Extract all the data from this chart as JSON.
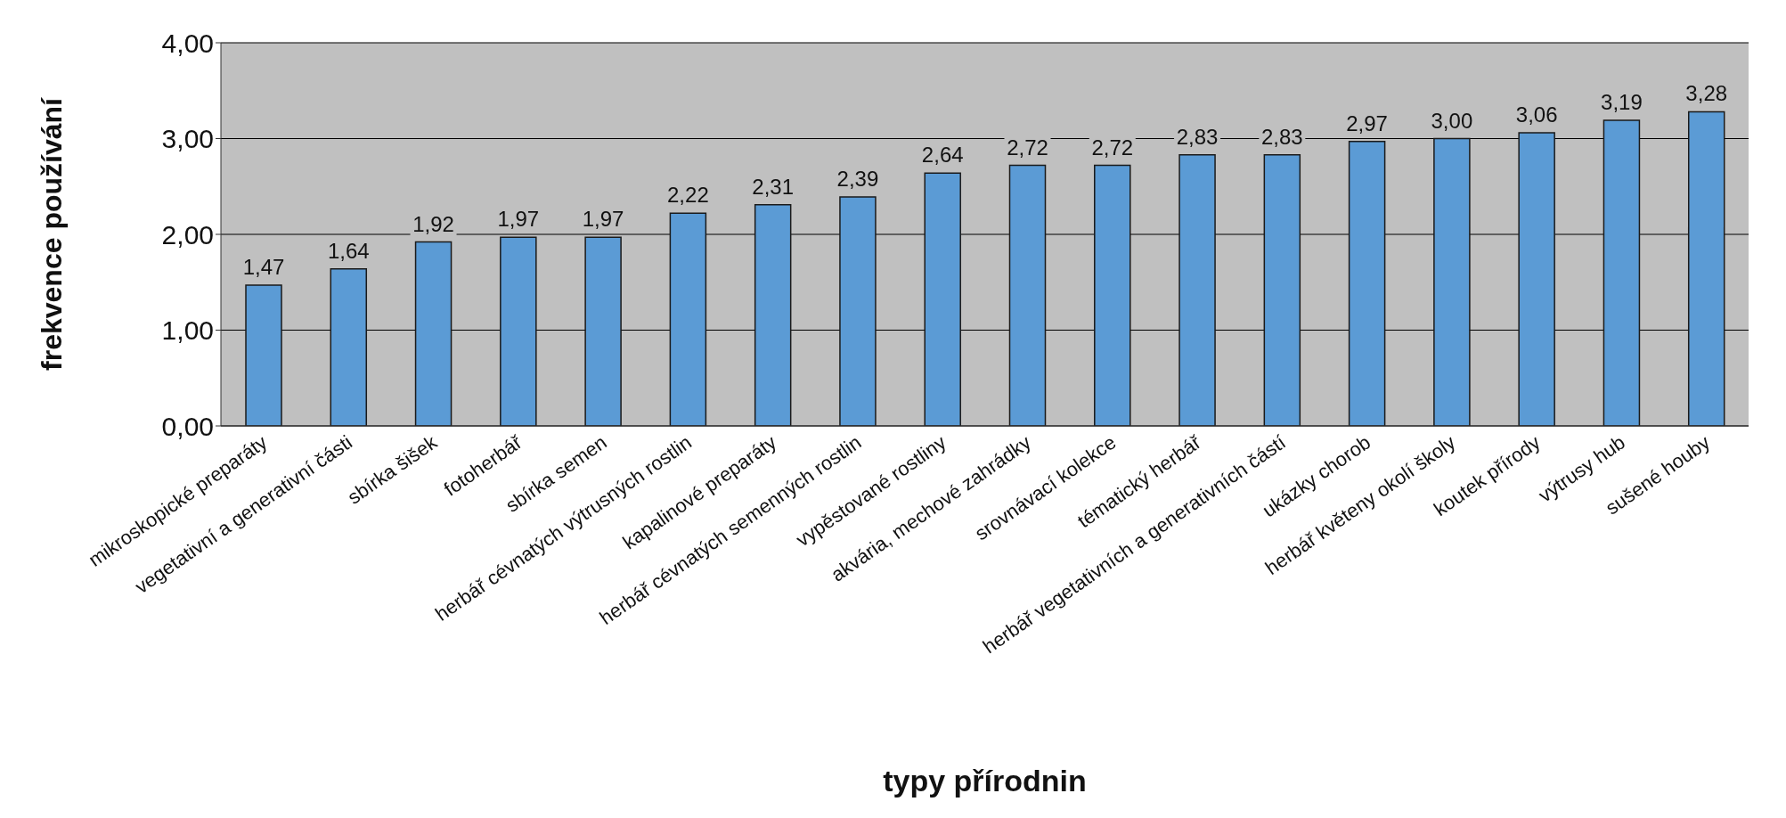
{
  "chart_data": {
    "type": "bar",
    "xlabel": "typy přírodnin",
    "ylabel": "frekvence používání",
    "categories": [
      "mikroskopické preparáty",
      "vegetativní a generativní části",
      "sbírka šišek",
      "fotoherbář",
      "sbírka semen",
      "herbář cévnatých výtrusných rostlin",
      "kapalinové preparáty",
      "herbář cévnatých semenných rostlin",
      "vypěstované rostliny",
      "akvária, mechové zahrádky",
      "srovnávací kolekce",
      "tématický herbář",
      "herbář vegetativních a generativních částí",
      "ukázky chorob",
      "herbář květeny okolí školy",
      "koutek přírody",
      "výtrusy hub",
      "sušené houby"
    ],
    "values": [
      1.47,
      1.64,
      1.92,
      1.97,
      1.97,
      2.22,
      2.31,
      2.39,
      2.64,
      2.72,
      2.72,
      2.83,
      2.83,
      2.97,
      3.0,
      3.06,
      3.19,
      3.28
    ],
    "value_labels": [
      "1,47",
      "1,64",
      "1,92",
      "1,97",
      "1,97",
      "2,22",
      "2,31",
      "2,39",
      "2,64",
      "2,72",
      "2,72",
      "2,83",
      "2,83",
      "2,97",
      "3,00",
      "3,06",
      "3,19",
      "3,28"
    ],
    "color": "#5b9bd5",
    "ylim": [
      0,
      4
    ],
    "yticks": [
      {
        "value": 0,
        "label": "0,00"
      },
      {
        "value": 1,
        "label": "1,00"
      },
      {
        "value": 2,
        "label": "2,00"
      },
      {
        "value": 3,
        "label": "3,00"
      },
      {
        "value": 4,
        "label": "4,00"
      }
    ],
    "grid": "y",
    "legend": false
  }
}
